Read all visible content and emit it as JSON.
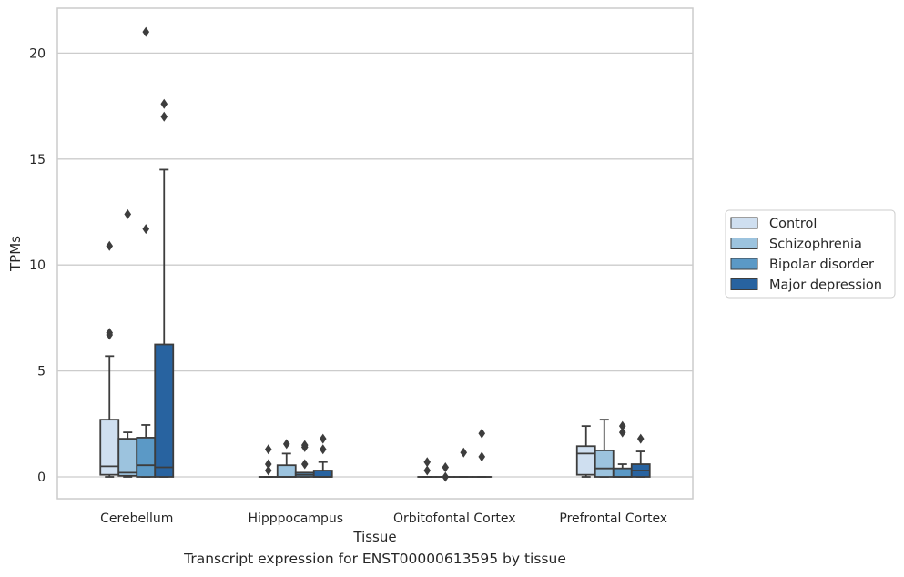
{
  "caption": "Transcript expression for ENST00000613595 by tissue",
  "chart_data": {
    "type": "boxplot",
    "xlabel": "Tissue",
    "ylabel": "TPMs",
    "ylim": [
      -1,
      22
    ],
    "yticks": [
      0,
      5,
      10,
      15,
      20
    ],
    "grid": "horizontal",
    "legend_position": "right",
    "categories": [
      "Cerebellum",
      "Hipppocampus",
      "Orbitofontal Cortex",
      "Prefrontal Cortex"
    ],
    "series": [
      {
        "name": "Control",
        "color": "#cfdff0",
        "boxes": [
          {
            "whislo": 0.0,
            "q1": 0.1,
            "med": 0.5,
            "q3": 2.7,
            "whishi": 5.7,
            "fliers": [
              10.9,
              6.7,
              6.8
            ]
          },
          {
            "whislo": 0.0,
            "q1": 0.0,
            "med": 0.0,
            "q3": 0.0,
            "whishi": 0.0,
            "fliers": [
              0.3,
              0.6,
              1.3
            ]
          },
          {
            "whislo": 0.0,
            "q1": 0.0,
            "med": 0.0,
            "q3": 0.0,
            "whishi": 0.0,
            "fliers": [
              0.3,
              0.7
            ]
          },
          {
            "whislo": 0.0,
            "q1": 0.1,
            "med": 1.1,
            "q3": 1.45,
            "whishi": 2.4,
            "fliers": []
          }
        ]
      },
      {
        "name": "Schizophrenia",
        "color": "#9cc3de",
        "boxes": [
          {
            "whislo": 0.0,
            "q1": 0.05,
            "med": 0.2,
            "q3": 1.8,
            "whishi": 2.1,
            "fliers": [
              12.4
            ]
          },
          {
            "whislo": 0.0,
            "q1": 0.0,
            "med": 0.0,
            "q3": 0.55,
            "whishi": 1.1,
            "fliers": [
              1.55
            ]
          },
          {
            "whislo": 0.0,
            "q1": 0.0,
            "med": 0.0,
            "q3": 0.0,
            "whishi": 0.0,
            "fliers": [
              0.0,
              0.45
            ]
          },
          {
            "whislo": 0.0,
            "q1": 0.0,
            "med": 0.4,
            "q3": 1.25,
            "whishi": 2.7,
            "fliers": []
          }
        ]
      },
      {
        "name": "Bipolar disorder",
        "color": "#5b99c6",
        "boxes": [
          {
            "whislo": 0.0,
            "q1": 0.0,
            "med": 0.55,
            "q3": 1.85,
            "whishi": 2.45,
            "fliers": [
              21.0,
              11.7
            ]
          },
          {
            "whislo": 0.0,
            "q1": 0.0,
            "med": 0.1,
            "q3": 0.2,
            "whishi": 0.2,
            "fliers": [
              1.4,
              1.5,
              0.6
            ]
          },
          {
            "whislo": 0.0,
            "q1": 0.0,
            "med": 0.0,
            "q3": 0.0,
            "whishi": 0.0,
            "fliers": [
              1.15
            ]
          },
          {
            "whislo": 0.0,
            "q1": 0.0,
            "med": 0.0,
            "q3": 0.4,
            "whishi": 0.6,
            "fliers": [
              2.4,
              2.1
            ]
          }
        ]
      },
      {
        "name": "Major depression",
        "color": "#2863a0",
        "boxes": [
          {
            "whislo": 0.0,
            "q1": 0.0,
            "med": 0.45,
            "q3": 6.25,
            "whishi": 14.5,
            "fliers": [
              17.6,
              17.0
            ]
          },
          {
            "whislo": 0.0,
            "q1": 0.0,
            "med": 0.0,
            "q3": 0.3,
            "whishi": 0.7,
            "fliers": [
              1.8,
              1.3
            ]
          },
          {
            "whislo": 0.0,
            "q1": 0.0,
            "med": 0.0,
            "q3": 0.0,
            "whishi": 0.0,
            "fliers": [
              2.05,
              0.95
            ]
          },
          {
            "whislo": 0.0,
            "q1": 0.0,
            "med": 0.3,
            "q3": 0.6,
            "whishi": 1.2,
            "fliers": [
              1.8
            ]
          }
        ]
      }
    ]
  }
}
